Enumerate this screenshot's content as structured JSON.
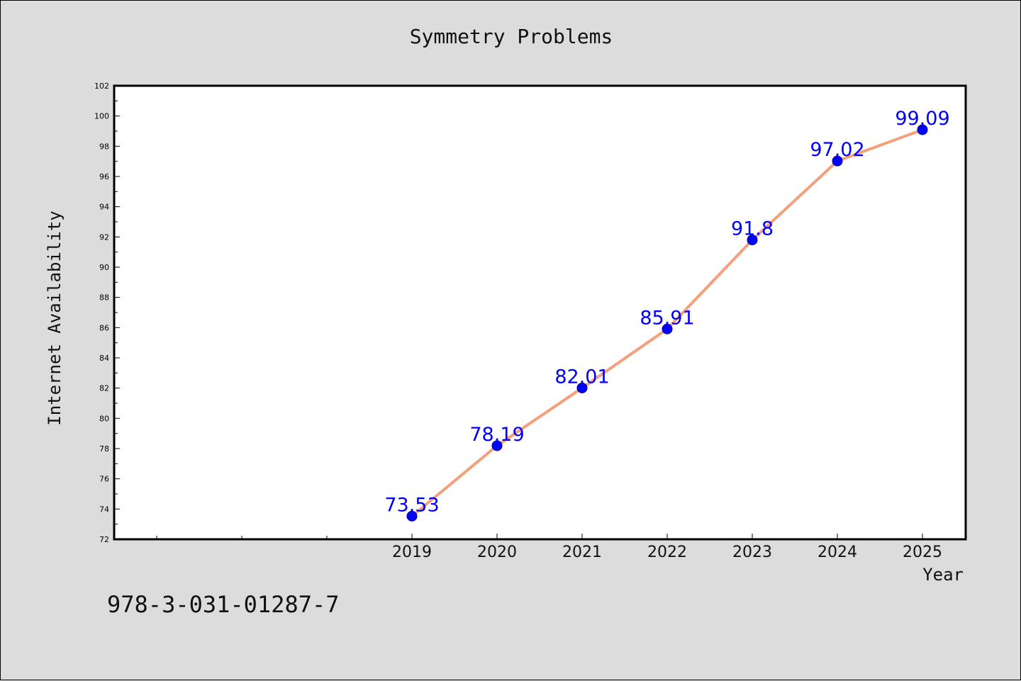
{
  "chart_data": {
    "type": "line",
    "title": "Symmetry Problems",
    "xlabel": "Year",
    "ylabel": "Internet Availability",
    "categories": [
      "2019",
      "2020",
      "2021",
      "2022",
      "2023",
      "2024",
      "2025"
    ],
    "series": [
      {
        "values": [
          73.53,
          78.19,
          82.01,
          85.91,
          91.8,
          97.02,
          99.09
        ],
        "labels": [
          "73.53",
          "78.19",
          "82.01",
          "85.91",
          "91.8",
          "97.02",
          "99.09"
        ]
      }
    ],
    "ylim": [
      72,
      102
    ],
    "yticks": [
      "72",
      "74",
      "76",
      "78",
      "80",
      "82",
      "84",
      "86",
      "88",
      "90",
      "92",
      "94",
      "96",
      "98",
      "100",
      "102"
    ],
    "grid": false,
    "line_color": "#f4a07c",
    "marker_color": "#0000ff",
    "label_color": "#0000ff"
  },
  "footer_code": "978-3-031-01287-7"
}
